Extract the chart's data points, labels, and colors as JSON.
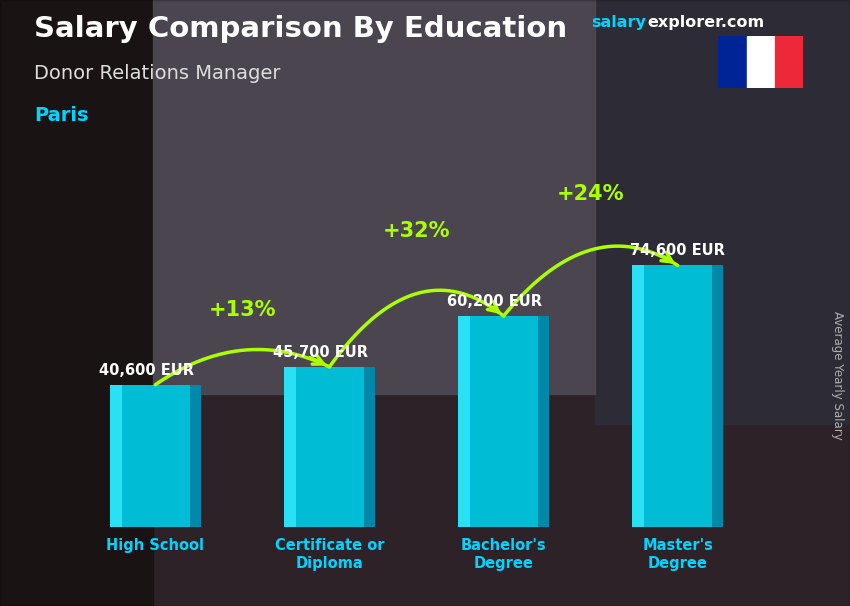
{
  "title": "Salary Comparison By Education",
  "subtitle": "Donor Relations Manager",
  "city": "Paris",
  "ylabel": "Average Yearly Salary",
  "categories": [
    "High School",
    "Certificate or\nDiploma",
    "Bachelor's\nDegree",
    "Master's\nDegree"
  ],
  "values": [
    40600,
    45700,
    60200,
    74600
  ],
  "value_labels": [
    "40,600 EUR",
    "45,700 EUR",
    "60,200 EUR",
    "74,600 EUR"
  ],
  "pct_changes": [
    "+13%",
    "+32%",
    "+24%"
  ],
  "bar_color_main": "#00bcd4",
  "bar_color_light": "#29e0f5",
  "bar_color_dark": "#0088aa",
  "bar_color_top": "#00aacc",
  "bg_color": "#3a3a4a",
  "overlay_color": "#00000066",
  "title_color": "#ffffff",
  "subtitle_color": "#dddddd",
  "city_color": "#00d4ff",
  "value_label_color": "#ffffff",
  "pct_color": "#aaff00",
  "xlabel_color": "#00d4ff",
  "site_salary_color": "#00d4ff",
  "site_explorer_color": "#ffffff",
  "arrow_color": "#aaff00",
  "ylabel_color": "#bbbbbb",
  "figsize": [
    8.5,
    6.06
  ],
  "dpi": 100
}
